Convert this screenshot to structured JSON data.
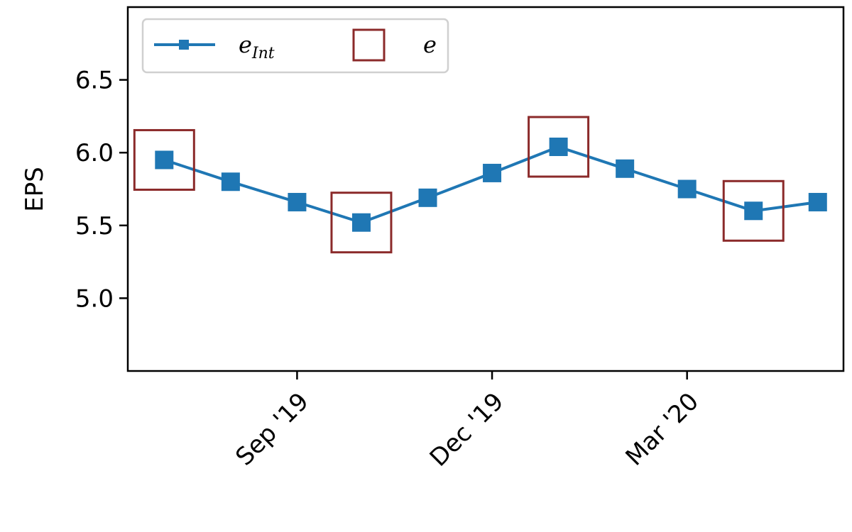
{
  "chart_data": {
    "type": "line",
    "title": "",
    "xlabel": "",
    "ylabel": "EPS",
    "ylim": [
      4.5,
      7.0
    ],
    "xlim": [
      "2019-06-13",
      "2020-05-12"
    ],
    "yticks": [
      5.0,
      5.5,
      6.0,
      6.5
    ],
    "ytick_labels": [
      "5.0",
      "5.5",
      "6.0",
      "6.5"
    ],
    "xticks": [
      "2019-08-31",
      "2019-11-30",
      "2020-02-29"
    ],
    "xtick_labels": [
      "Sep '19",
      "Dec '19",
      "Mar '20"
    ],
    "grid": false,
    "legend_position": "top-left",
    "series": [
      {
        "name": "e_Int",
        "color": "#1f77b4",
        "marker": "square",
        "x": [
          "2019-06-30",
          "2019-07-31",
          "2019-08-31",
          "2019-09-30",
          "2019-10-31",
          "2019-11-30",
          "2019-12-31",
          "2020-01-31",
          "2020-02-29",
          "2020-03-31",
          "2020-04-30"
        ],
        "y": [
          5.95,
          5.8,
          5.66,
          5.52,
          5.69,
          5.86,
          6.04,
          5.89,
          5.75,
          5.6,
          5.66
        ]
      },
      {
        "name": "e",
        "color": "#8b2a2a",
        "marker": "hollow-square",
        "x": [
          "2019-06-30",
          "2019-09-30",
          "2019-12-31",
          "2020-03-31"
        ],
        "y": [
          5.95,
          5.52,
          6.04,
          5.6
        ]
      }
    ],
    "legend": [
      {
        "label": "e",
        "subscript": "Int",
        "color": "#1f77b4",
        "style": "line-square"
      },
      {
        "label": "e",
        "subscript": "",
        "color": "#8b2a2a",
        "style": "hollow-square"
      }
    ]
  }
}
